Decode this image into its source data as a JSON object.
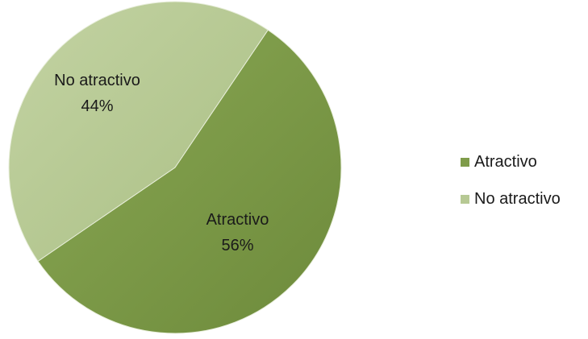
{
  "chart_data": {
    "type": "pie",
    "title": "",
    "legend_position": "right",
    "slices": [
      {
        "name": "Atractivo",
        "value": 56,
        "percent_label": "56%",
        "color": "#7f9c4a"
      },
      {
        "name": "No atractivo",
        "value": 44,
        "percent_label": "44%",
        "color": "#b7c994"
      }
    ]
  }
}
